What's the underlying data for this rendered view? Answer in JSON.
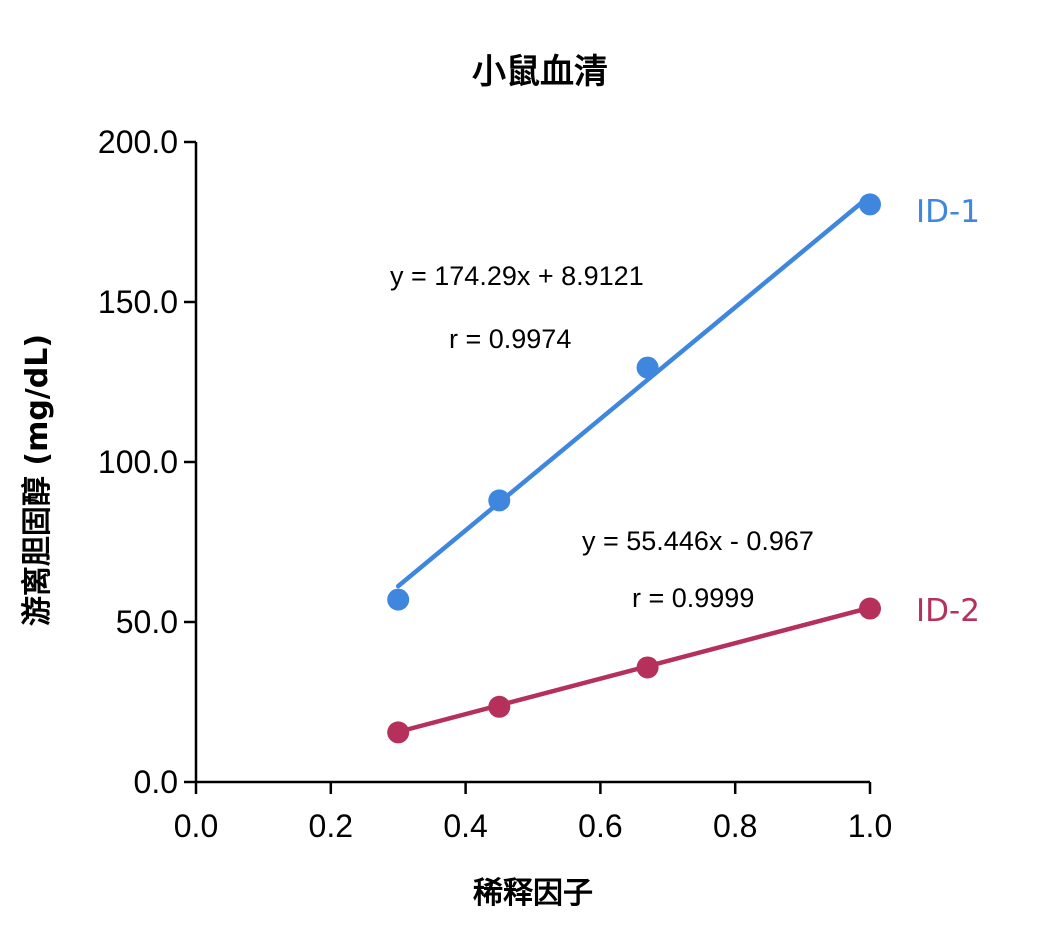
{
  "chart_data": {
    "type": "scatter",
    "title": "小鼠血清",
    "xlabel": "稀释因子",
    "ylabel": "游离胆固醇 (mg/dL)",
    "xlim": [
      0.0,
      1.0
    ],
    "ylim": [
      0.0,
      200.0
    ],
    "x_ticks": [
      "0.0",
      "0.2",
      "0.4",
      "0.6",
      "0.8",
      "1.0"
    ],
    "y_ticks": [
      "0.0",
      "50.0",
      "100.0",
      "150.0",
      "200.0"
    ],
    "grid": false,
    "series": [
      {
        "name": "ID-1",
        "color": "#3f87de",
        "x": [
          0.3,
          0.45,
          0.67,
          1.0
        ],
        "y": [
          57.0,
          88.0,
          129.5,
          180.5
        ],
        "fit": {
          "slope": 174.29,
          "intercept": 8.9121
        },
        "equation": "y = 174.29x + 8.9121",
        "r_text": "r = 0.9974"
      },
      {
        "name": "ID-2",
        "color": "#b5305a",
        "x": [
          0.3,
          0.45,
          0.67,
          1.0
        ],
        "y": [
          15.5,
          23.5,
          35.8,
          54.2
        ],
        "fit": {
          "slope": 55.446,
          "intercept": -0.967
        },
        "equation": "y = 55.446x - 0.967",
        "r_text": "r = 0.9999"
      }
    ]
  }
}
